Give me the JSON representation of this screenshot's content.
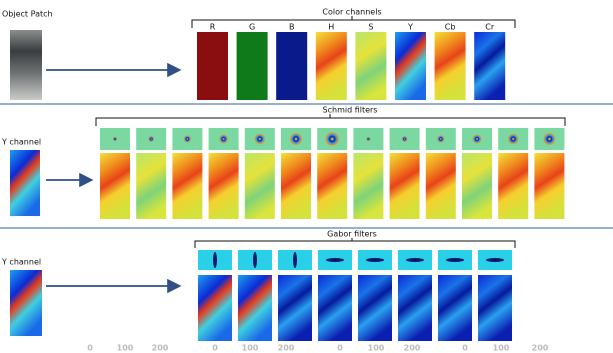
{
  "sections": [
    {
      "title": "Color channels",
      "input_label": "Object Patch",
      "channels": [
        "R",
        "G",
        "B",
        "H",
        "S",
        "Y",
        "Cb",
        "Cr"
      ]
    },
    {
      "title": "Schmid filters",
      "input_label": "Y channel"
    },
    {
      "title": "Gabor filters",
      "input_label": "Y channel"
    }
  ],
  "axis_labels": [
    0,
    100,
    200,
    0,
    100,
    200,
    0,
    100,
    200,
    0,
    100,
    200
  ]
}
